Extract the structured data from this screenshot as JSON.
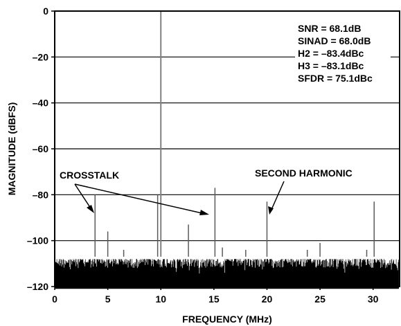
{
  "chart_data": {
    "type": "line",
    "title": "",
    "xlabel": "FREQUENCY (MHz)",
    "ylabel": "MAGNITUDE (dBFS)",
    "xlim": [
      0,
      32.5
    ],
    "ylim": [
      -120,
      0
    ],
    "grid": "horizontal",
    "x_ticks": [
      0,
      5,
      10,
      15,
      20,
      25,
      30
    ],
    "x_tick_labels": [
      "0",
      "5",
      "10",
      "15",
      "20",
      "25",
      "30"
    ],
    "y_ticks": [
      0,
      -20,
      -40,
      -60,
      -80,
      -100,
      -120
    ],
    "y_tick_labels": [
      "0",
      "–20",
      "–40",
      "–60",
      "–80",
      "–100",
      "–120"
    ],
    "noise_floor_dbfs": [
      -121,
      -108
    ],
    "series": [
      {
        "x": [
          10.0,
          3.8,
          15.1,
          20.0,
          30.1,
          5.0,
          12.6,
          15.8,
          18.0,
          25.0,
          29.4,
          6.5,
          23.8,
          9.7
        ],
        "values": [
          0,
          -80,
          -77,
          -83,
          -83,
          -96,
          -93,
          -103,
          -104,
          -101,
          -104,
          -104,
          -104,
          -80
        ]
      }
    ],
    "stats": [
      "SNR = 68.1dB",
      "SINAD = 68.0dB",
      "H2 = –83.4dBc",
      "H3 = –83.1dBc",
      "SFDR = 75.1dBc"
    ],
    "annotations": [
      {
        "text": "CROSSTALK",
        "targets": [
          [
            3.8,
            -91
          ],
          [
            15.0,
            -92
          ]
        ]
      },
      {
        "text": "SECOND HARMONIC",
        "targets": [
          [
            20.0,
            -91
          ]
        ]
      }
    ]
  }
}
